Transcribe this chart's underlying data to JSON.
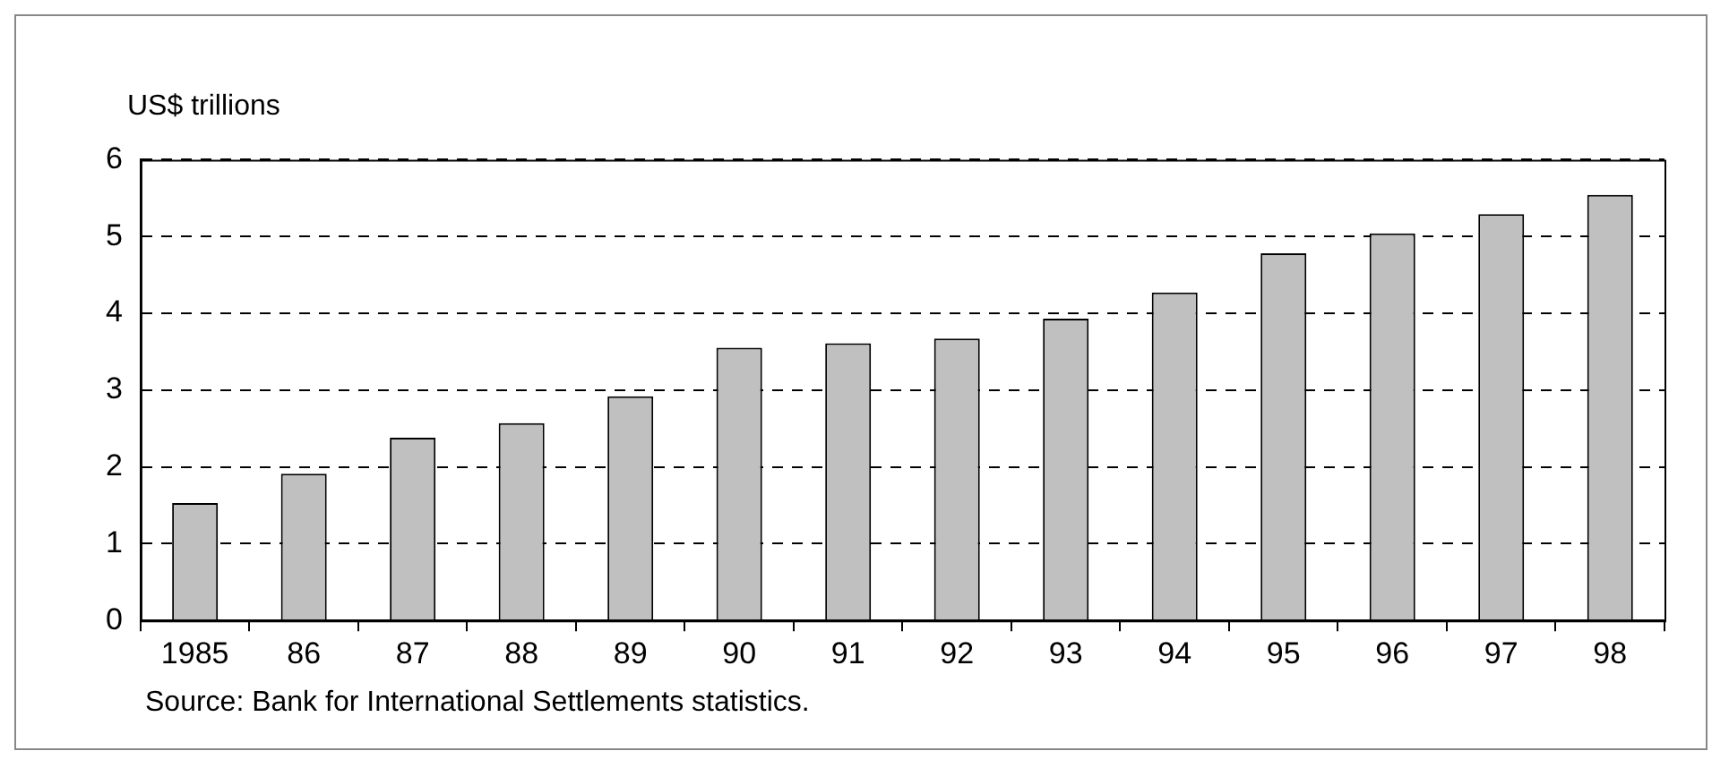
{
  "chart_data": {
    "type": "bar",
    "ylabel": "US$ trillions",
    "categories": [
      "1985",
      "86",
      "87",
      "88",
      "89",
      "90",
      "91",
      "92",
      "93",
      "94",
      "95",
      "96",
      "97",
      "98"
    ],
    "values": [
      1.53,
      1.91,
      2.38,
      2.57,
      2.92,
      3.55,
      3.61,
      3.67,
      3.93,
      4.27,
      4.78,
      5.04,
      5.29,
      5.54
    ],
    "color": "#c0c0c0",
    "ylim": [
      0,
      6
    ],
    "yticks": [
      0,
      1,
      2,
      3,
      4,
      5,
      6
    ],
    "grid": "y",
    "legend": false,
    "annotations": [
      "Source: Bank for International Settlements statistics."
    ]
  }
}
